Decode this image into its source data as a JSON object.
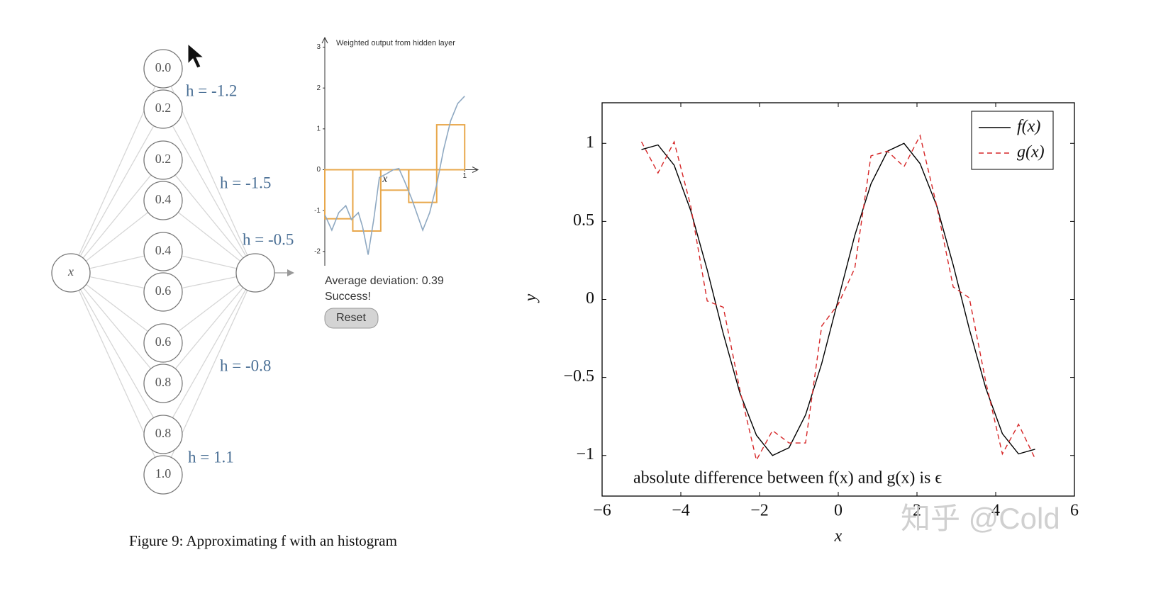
{
  "network": {
    "input": "x",
    "hidden": [
      "0.0",
      "0.2",
      "0.2",
      "0.4",
      "0.4",
      "0.6",
      "0.6",
      "0.8",
      "0.8",
      "1.0"
    ],
    "h_labels": [
      "h = -1.2",
      "h = -1.5",
      "h = -0.5",
      "h = -0.8",
      "h = 1.1"
    ]
  },
  "status": {
    "deviation": "Average deviation: 0.39",
    "result": "Success!"
  },
  "button": "Reset",
  "caption": "Figure 9: Approximating f with an histogram",
  "watermark": "知乎 @Cold",
  "chart_data": [
    {
      "type": "line",
      "title": "Weighted output from hidden layer",
      "xlabel": "x",
      "x": [
        0,
        0.05,
        0.1,
        0.15,
        0.19,
        0.24,
        0.27,
        0.31,
        0.35,
        0.39,
        0.44,
        0.49,
        0.53,
        0.57,
        0.62,
        0.7,
        0.75,
        0.8,
        0.85,
        0.9,
        0.95,
        1.0
      ],
      "series": [
        {
          "color": "#8fa9c2",
          "values": [
            -1.1,
            -1.48,
            -1.05,
            -0.88,
            -1.22,
            -1.05,
            -1.4,
            -2.08,
            -1.22,
            -0.19,
            -0.1,
            0,
            0.03,
            -0.28,
            -0.7,
            -1.48,
            -1.05,
            -0.36,
            0.5,
            1.2,
            1.62,
            1.8
          ]
        }
      ],
      "histogram": {
        "color": "#e8a84c",
        "bins": [
          0,
          0.2,
          0.4,
          0.6,
          0.8,
          1
        ],
        "values": [
          -1.2,
          -1.5,
          -0.5,
          -0.8,
          1.1
        ]
      },
      "xlim": [
        0,
        1.08
      ],
      "ylim": [
        -2.35,
        3.2
      ],
      "xticks": [
        1
      ],
      "yticks": [
        -2,
        -1,
        0,
        1,
        2,
        3
      ]
    },
    {
      "type": "line",
      "xlabel": "x",
      "ylabel": "y",
      "annotation": "absolute difference between f(x) and g(x) is ϵ",
      "x": [
        -5,
        -4.58,
        -4.17,
        -3.75,
        -3.33,
        -2.92,
        -2.5,
        -2.08,
        -1.67,
        -1.25,
        -0.83,
        -0.42,
        0,
        0.42,
        0.83,
        1.25,
        1.67,
        2.08,
        2.5,
        2.92,
        3.33,
        3.75,
        4.17,
        4.58,
        5
      ],
      "series": [
        {
          "name": "f(x)",
          "color": "#000000",
          "dash": false,
          "values": [
            0.96,
            0.99,
            0.86,
            0.57,
            0.19,
            -0.22,
            -0.6,
            -0.87,
            -1.0,
            -0.95,
            -0.74,
            -0.41,
            0,
            0.41,
            0.74,
            0.95,
            1.0,
            0.87,
            0.6,
            0.22,
            -0.19,
            -0.57,
            -0.86,
            -0.99,
            -0.96
          ]
        },
        {
          "name": "g(x)",
          "color": "#d62728",
          "dash": true,
          "values": [
            1.01,
            0.81,
            1.01,
            0.6,
            -0.01,
            -0.05,
            -0.58,
            -1.03,
            -0.84,
            -0.92,
            -0.92,
            -0.17,
            -0.03,
            0.2,
            0.92,
            0.95,
            0.85,
            1.05,
            0.6,
            0.08,
            0.01,
            -0.53,
            -0.99,
            -0.8,
            -1.02
          ]
        }
      ],
      "xlim": [
        -6,
        6
      ],
      "ylim": [
        -1.26,
        1.26
      ],
      "xticks": [
        {
          "value": -6,
          "label": "−6"
        },
        {
          "value": -4,
          "label": "−4"
        },
        {
          "value": -2,
          "label": "−2"
        },
        0,
        2,
        4,
        6
      ],
      "yticks": [
        {
          "value": -1,
          "label": "−1"
        },
        {
          "value": -0.5,
          "label": "−0.5"
        },
        0,
        0.5,
        1
      ],
      "legend": "upper right"
    }
  ]
}
